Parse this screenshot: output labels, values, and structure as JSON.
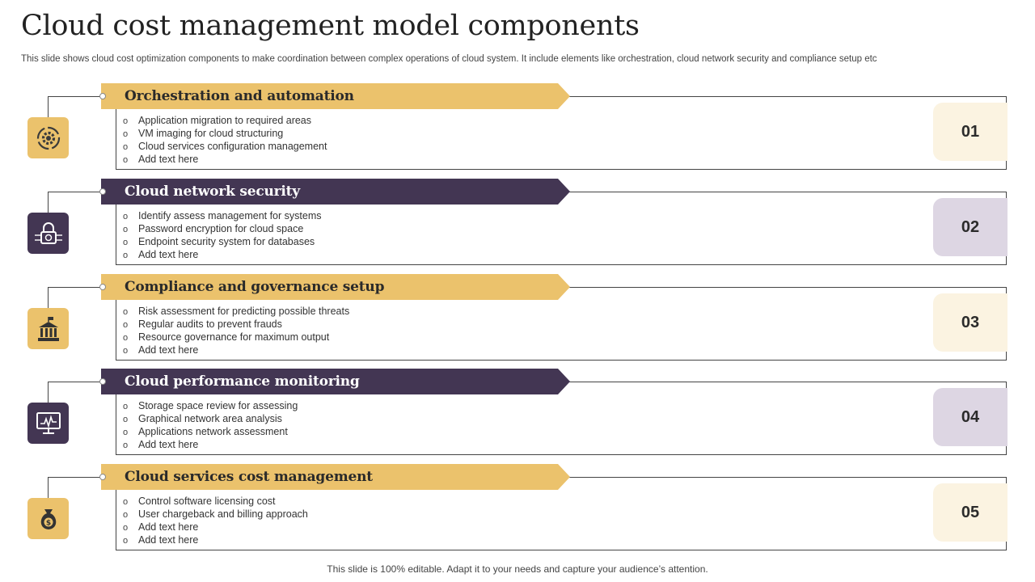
{
  "title": "Cloud cost management model components",
  "subtitle": "This slide shows cloud cost optimization components to make coordination between complex operations of cloud system. It include elements like orchestration, cloud network security and compliance setup etc",
  "footer": "This slide is 100% editable. Adapt it to your needs and capture your audience’s attention.",
  "colors": {
    "gold": "#ebc26c",
    "purple": "#433653",
    "gold_light": "#fbf3e1",
    "purple_light": "#ddd6e3"
  },
  "items": [
    {
      "heading": "Orchestration and automation",
      "number": "01",
      "icon": "gear-cycle-icon",
      "theme": "gold",
      "bullets": [
        "Application migration  to required  areas",
        "VM imaging for cloud structuring",
        "Cloud services  configuration  management",
        "Add text here"
      ]
    },
    {
      "heading": "Cloud network security",
      "number": "02",
      "icon": "lock-network-icon",
      "theme": "purple",
      "bullets": [
        "Identify assess management  for systems",
        "Password encryption for cloud space",
        "Endpoint  security system for databases",
        "Add text here"
      ]
    },
    {
      "heading": "Compliance and governance setup",
      "number": "03",
      "icon": "government-building-icon",
      "theme": "gold",
      "bullets": [
        "Risk assessment for predicting possible threats",
        "Regular  audits to prevent  frauds",
        "Resource governance  for maximum output",
        "Add text here"
      ]
    },
    {
      "heading": "Cloud performance monitoring",
      "number": "04",
      "icon": "monitor-chart-icon",
      "theme": "purple",
      "bullets": [
        "Storage space review  for assessing",
        "Graphical network area analysis",
        "Applications network assessment",
        "Add text here"
      ]
    },
    {
      "heading": "Cloud services cost management",
      "number": "05",
      "icon": "money-bag-icon",
      "theme": "gold",
      "bullets": [
        "Control software  licensing cost",
        "User chargeback and billing approach",
        "Add text here",
        "Add text here"
      ]
    }
  ]
}
